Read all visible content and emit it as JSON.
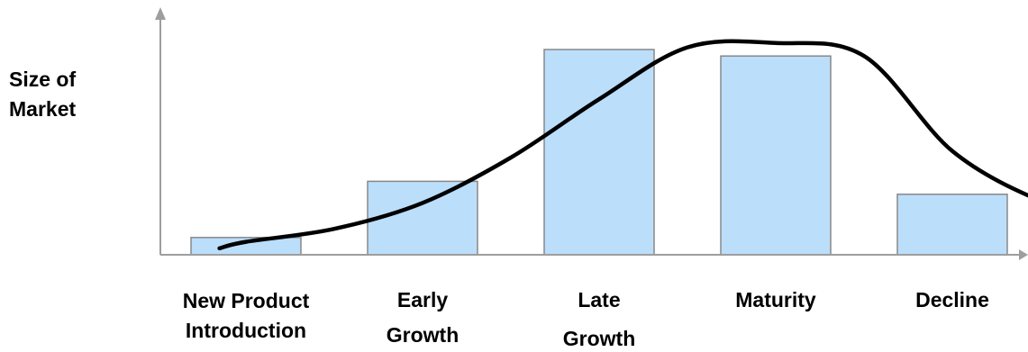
{
  "chart_data": {
    "type": "bar",
    "title": "",
    "ylabel_lines": [
      "Size of",
      "Market"
    ],
    "xlabel": "",
    "categories": [
      [
        "New Product",
        "Introduction"
      ],
      [
        "Early",
        "Growth"
      ],
      [
        "Late",
        "Growth"
      ],
      [
        "Maturity"
      ],
      [
        "Decline"
      ]
    ],
    "values": [
      8,
      34,
      95,
      92,
      28
    ],
    "ylim": [
      0,
      100
    ],
    "curve": [
      [
        -0.15,
        3
      ],
      [
        0,
        6
      ],
      [
        0.5,
        12
      ],
      [
        1,
        24
      ],
      [
        1.5,
        45
      ],
      [
        2,
        72
      ],
      [
        2.5,
        96
      ],
      [
        3,
        98
      ],
      [
        3.5,
        92
      ],
      [
        4,
        48
      ],
      [
        4.5,
        25
      ],
      [
        4.8,
        21
      ]
    ],
    "grid": false,
    "legend": "none",
    "colors": {
      "bar_fill": "#bbdefb",
      "bar_stroke": "#888888",
      "curve": "#000000",
      "axis": "#9e9e9e"
    }
  }
}
